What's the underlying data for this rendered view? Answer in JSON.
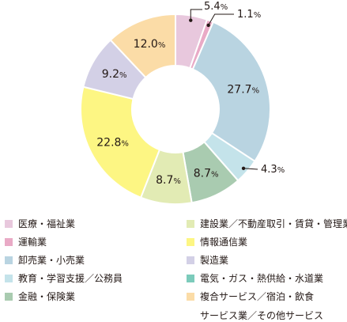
{
  "chart_data": {
    "type": "pie",
    "donut": true,
    "slices": [
      {
        "label": "医療・福祉業",
        "value": 5.4,
        "value_label": "5.4",
        "color": "#e8c8dd"
      },
      {
        "label": "運輸業",
        "value": 1.1,
        "value_label": "1.1",
        "color": "#e9aac6"
      },
      {
        "label": "卸売業・小売業",
        "value": 27.7,
        "value_label": "27.7",
        "color": "#b9d4e1"
      },
      {
        "label": "教育・学習支援／公務員",
        "value": 4.3,
        "value_label": "4.3",
        "color": "#c4e3ea"
      },
      {
        "label": "金融・保険業",
        "value": 8.7,
        "value_label": "8.7",
        "color": "#a9cbb0"
      },
      {
        "label": "建設業／不動産取引・賃貸・管理業",
        "value": 8.7,
        "value_label": "8.7",
        "color": "#e2ebb4"
      },
      {
        "label": "情報通信業",
        "value": 22.8,
        "value_label": "22.8",
        "color": "#fdf683"
      },
      {
        "label": "製造業",
        "value": 9.2,
        "value_label": "9.2",
        "color": "#d3d0e6"
      },
      {
        "label": "複合サービス／宿泊・飲食サービス業／その他サービス",
        "value": 12.0,
        "value_label": "12.0",
        "color": "#fbdca7"
      }
    ],
    "unit": "%",
    "legend": {
      "placement": "bottom",
      "entries": [
        {
          "label": "医療・福祉業",
          "color": "#e8c8dd"
        },
        {
          "label": "運輸業",
          "color": "#e9aac6"
        },
        {
          "label": "卸売業・小売業",
          "color": "#b9d4e1"
        },
        {
          "label": "教育・学習支援／公務員",
          "color": "#c4e3ea"
        },
        {
          "label": "金融・保険業",
          "color": "#a9cbb0"
        },
        {
          "label": "建設業／不動産取引・賃貸・管理業",
          "color": "#e2ebb4"
        },
        {
          "label": "情報通信業",
          "color": "#fdf683"
        },
        {
          "label": "製造業",
          "color": "#d3d0e6"
        },
        {
          "label": "電気・ガス・熱供給・水道業",
          "color": "#7ccbbb"
        },
        {
          "label": "複合サービス／宿泊・飲食",
          "label_line2": "サービス業／その他サービス",
          "color": "#fbdca7"
        }
      ]
    }
  }
}
